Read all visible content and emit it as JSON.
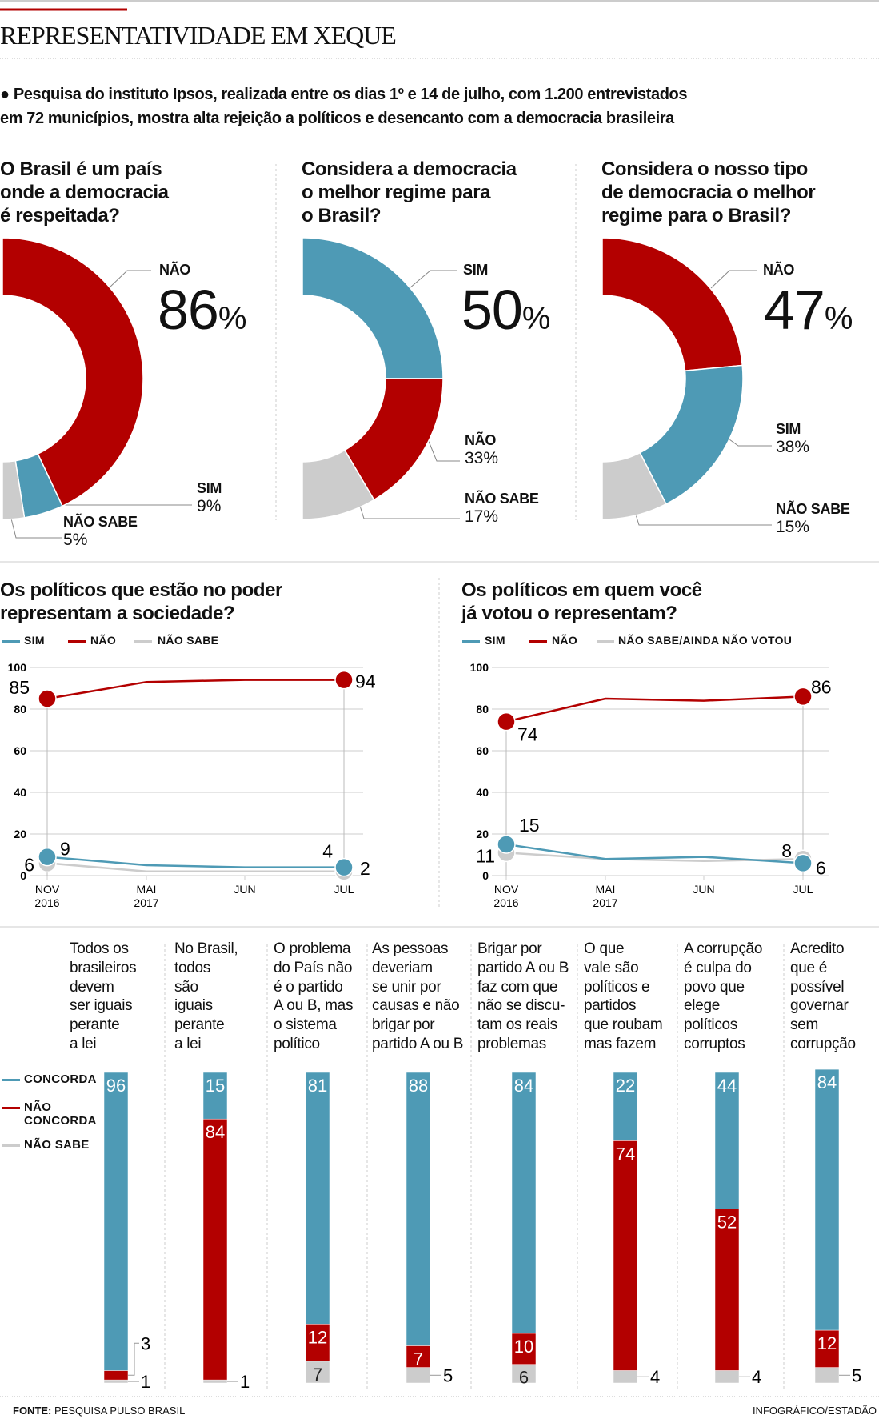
{
  "header": {
    "title": "REPRESENTATIVIDADE EM XEQUE",
    "intro_line1": "Pesquisa do instituto Ipsos, realizada entre os dias 1º e 14 de julho, com 1.200 entrevistados",
    "intro_line2": "em 72 municípios, mostra alta rejeição a políticos e desencanto com a democracia brasileira"
  },
  "colors": {
    "sim": "#4e9ab5",
    "nao": "#b30000",
    "nao_sabe": "#cccccc",
    "accent": "#b30000"
  },
  "chart_data": [
    {
      "type": "pie",
      "subtype": "semi-donut",
      "title_lines": [
        "O Brasil é um país",
        "onde a democracia",
        "é respeitada?"
      ],
      "unit": "%",
      "slices": [
        {
          "label": "NÃO",
          "value": 86,
          "color": "#b30000"
        },
        {
          "label": "SIM",
          "value": 9,
          "color": "#4e9ab5"
        },
        {
          "label": "NÃO SABE",
          "value": 5,
          "color": "#cccccc"
        }
      ]
    },
    {
      "type": "pie",
      "subtype": "semi-donut",
      "title_lines": [
        "Considera a democracia",
        "o melhor regime para",
        "o Brasil?"
      ],
      "unit": "%",
      "slices": [
        {
          "label": "SIM",
          "value": 50,
          "color": "#4e9ab5"
        },
        {
          "label": "NÃO",
          "value": 33,
          "color": "#b30000"
        },
        {
          "label": "NÃO SABE",
          "value": 17,
          "color": "#cccccc"
        }
      ]
    },
    {
      "type": "pie",
      "subtype": "semi-donut",
      "title_lines": [
        "Considera o nosso tipo",
        "de democracia o melhor",
        "regime para o Brasil?"
      ],
      "unit": "%",
      "slices": [
        {
          "label": "NÃO",
          "value": 47,
          "color": "#b30000"
        },
        {
          "label": "SIM",
          "value": 38,
          "color": "#4e9ab5"
        },
        {
          "label": "NÃO SABE",
          "value": 15,
          "color": "#cccccc"
        }
      ]
    },
    {
      "type": "line",
      "title_lines": [
        "Os políticos que estão no poder",
        "representam a sociedade?"
      ],
      "x": [
        [
          "NOV",
          "2016"
        ],
        [
          "MAI",
          "2017"
        ],
        [
          "JUN",
          ""
        ],
        [
          "JUL",
          ""
        ]
      ],
      "ylim": [
        0,
        100
      ],
      "yticks": [
        0,
        20,
        40,
        60,
        80,
        100
      ],
      "grid": true,
      "legend": "top-left",
      "series": [
        {
          "name": "NÃO SABE",
          "color": "#cccccc",
          "values": [
            6,
            2,
            2,
            2
          ]
        },
        {
          "name": "SIM",
          "color": "#4e9ab5",
          "values": [
            9,
            5,
            4,
            4
          ]
        },
        {
          "name": "NÃO",
          "color": "#b30000",
          "values": [
            85,
            93,
            94,
            94
          ]
        }
      ]
    },
    {
      "type": "line",
      "title_lines": [
        "Os políticos em quem você",
        "já votou o representam?"
      ],
      "x": [
        [
          "NOV",
          "2016"
        ],
        [
          "MAI",
          "2017"
        ],
        [
          "JUN",
          ""
        ],
        [
          "JUL",
          ""
        ]
      ],
      "ylim": [
        0,
        100
      ],
      "yticks": [
        0,
        20,
        40,
        60,
        80,
        100
      ],
      "grid": true,
      "legend": "top-left",
      "series": [
        {
          "name": "NÃO SABE/AINDA NÃO VOTOU",
          "color": "#cccccc",
          "values": [
            11,
            8,
            7,
            8
          ]
        },
        {
          "name": "SIM",
          "color": "#4e9ab5",
          "values": [
            15,
            8,
            9,
            6
          ]
        },
        {
          "name": "NÃO",
          "color": "#b30000",
          "values": [
            74,
            85,
            84,
            86
          ]
        }
      ]
    },
    {
      "type": "bar",
      "stacked": true,
      "legend": "left",
      "categories": [
        [
          "Todos os",
          "brasileiros",
          "devem",
          "ser iguais",
          "perante",
          "a lei"
        ],
        [
          "No Brasil,",
          "todos",
          "são",
          "iguais",
          "perante",
          "a lei"
        ],
        [
          "O problema",
          "do País não",
          "é o partido",
          "A ou B, mas",
          "o sistema",
          "político"
        ],
        [
          "As pessoas",
          "deveriam",
          "se unir por",
          "causas e não",
          "brigar por",
          "partido A ou B"
        ],
        [
          "Brigar por",
          "partido A ou B",
          "faz com que",
          "não se discu-",
          "tam os reais",
          "problemas"
        ],
        [
          "O que",
          "vale são",
          "políticos e",
          "partidos",
          "que roubam",
          "mas fazem"
        ],
        [
          "A corrupção",
          "é culpa do",
          "povo que",
          "elege",
          "políticos",
          "corruptos"
        ],
        [
          "Acredito",
          "que é",
          "possível",
          "governar",
          "sem",
          "corrupção"
        ]
      ],
      "series": [
        {
          "name": "CONCORDA",
          "color": "#4e9ab5",
          "values": [
            96,
            15,
            81,
            88,
            84,
            22,
            44,
            84
          ]
        },
        {
          "name": "NÃO CONCORDA",
          "color": "#b30000",
          "values": [
            3,
            84,
            12,
            7,
            10,
            74,
            52,
            12
          ]
        },
        {
          "name": "NÃO SABE",
          "color": "#cccccc",
          "values": [
            1,
            1,
            7,
            5,
            6,
            4,
            4,
            5
          ]
        }
      ]
    }
  ],
  "footer": {
    "source_label": "FONTE:",
    "source": "PESQUISA PULSO BRASIL",
    "credit": "INFOGRÁFICO/ESTADÃO"
  }
}
